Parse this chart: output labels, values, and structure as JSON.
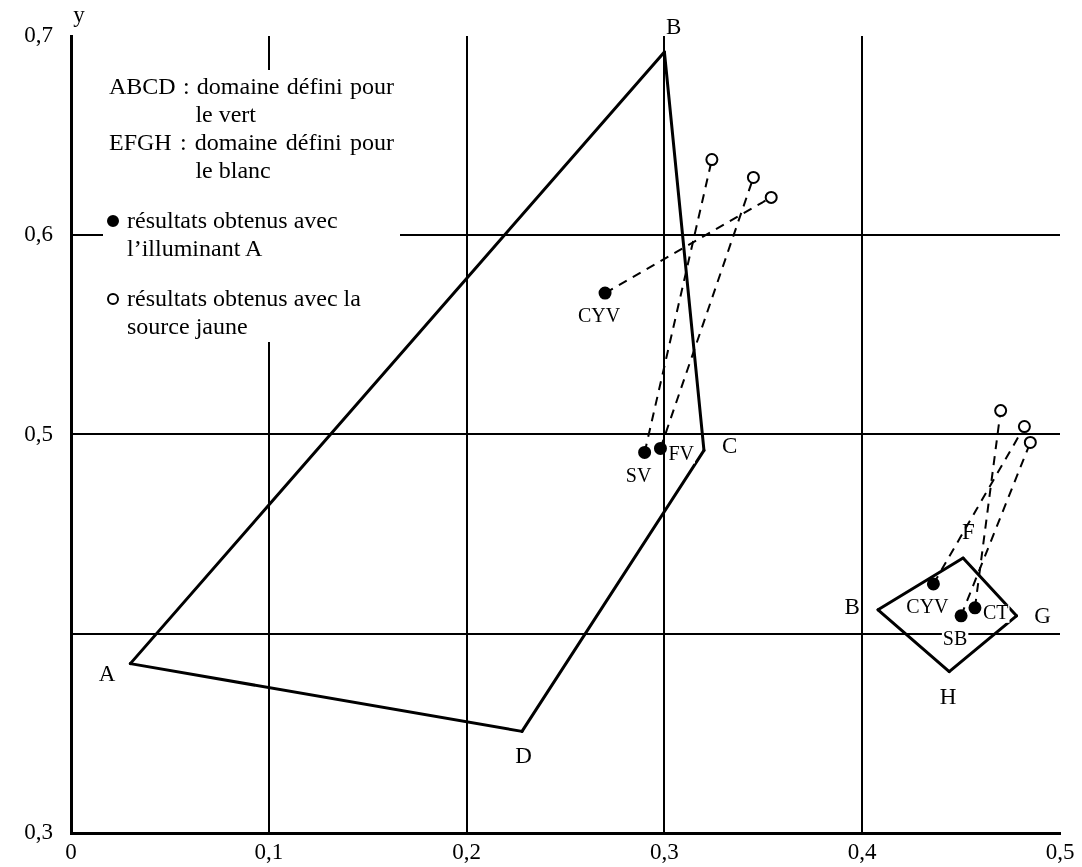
{
  "chart_data": {
    "type": "scatter",
    "ylabel": "y",
    "annotations": [
      "ABCD : domaine défini pour le vert",
      "EFGH : domaine défini pour le blanc"
    ],
    "xlim": [
      0,
      0.5
    ],
    "xticks": [
      0,
      {
        "value": 0.1,
        "label": "0,1"
      },
      {
        "value": 0.2,
        "label": "0,2"
      },
      {
        "value": 0.3,
        "label": "0,3"
      },
      {
        "value": 0.4,
        "label": "0,4"
      },
      {
        "value": 0.5,
        "label": "0,5"
      }
    ],
    "ylim": [
      0.3,
      0.7
    ],
    "yticks": [
      {
        "value": 0.3,
        "label": "0,3"
      },
      {
        "value": 0.4,
        "label": null
      },
      {
        "value": 0.5,
        "label": "0,5"
      },
      {
        "value": 0.6,
        "label": "0,6"
      },
      {
        "value": 0.7,
        "label": "0,7"
      }
    ],
    "grid": true,
    "legend": "top left",
    "series": [
      {
        "type": "scatter",
        "name": "résultats obtenus avec l’illuminant A",
        "color": "#000000",
        "marker": "circle",
        "x": [
          0.27,
          0.29,
          0.298,
          0.436,
          0.457,
          0.45
        ],
        "values": [
          0.571,
          0.491,
          0.493,
          0.425,
          0.413,
          0.409
        ],
        "value_labels": [
          "CYV",
          "SV",
          "FV",
          "CYV",
          "CT",
          "SB"
        ]
      },
      {
        "type": "scatter",
        "name": "résultats obtenus avec la source jaune",
        "color": "#ffffff",
        "marker": "circle",
        "x": [
          0.324,
          0.345,
          0.354,
          0.47,
          0.482,
          0.485
        ],
        "values": [
          0.638,
          0.629,
          0.619,
          0.512,
          0.504,
          0.496
        ]
      },
      {
        "type": "line",
        "color": "#000000",
        "marker": "none",
        "line_style": "dashed",
        "x": [
          0.27,
          0.354
        ],
        "values": [
          0.571,
          0.619
        ]
      },
      {
        "type": "line",
        "color": "#000000",
        "marker": "none",
        "line_style": "dashed",
        "x": [
          0.29,
          0.324
        ],
        "values": [
          0.491,
          0.638
        ]
      },
      {
        "type": "line",
        "color": "#000000",
        "marker": "none",
        "line_style": "dashed",
        "x": [
          0.298,
          0.345
        ],
        "values": [
          0.493,
          0.629
        ]
      },
      {
        "type": "line",
        "color": "#000000",
        "marker": "none",
        "line_style": "dashed",
        "x": [
          0.436,
          0.482
        ],
        "values": [
          0.425,
          0.504
        ]
      },
      {
        "type": "line",
        "color": "#000000",
        "marker": "none",
        "line_style": "dashed",
        "x": [
          0.457,
          0.47
        ],
        "values": [
          0.413,
          0.512
        ]
      },
      {
        "type": "line",
        "color": "#000000",
        "marker": "none",
        "line_style": "dashed",
        "x": [
          0.45,
          0.485
        ],
        "values": [
          0.409,
          0.496
        ]
      },
      {
        "type": "line",
        "color": "#000000",
        "marker": "none",
        "line_style": "solid",
        "x": [
          0.03,
          0.3
        ],
        "values": [
          0.385,
          0.692
        ],
        "value_labels": [
          "A",
          "B"
        ]
      },
      {
        "type": "line",
        "color": "#000000",
        "marker": "none",
        "line_style": "solid",
        "x": [
          0.3,
          0.32
        ],
        "values": [
          0.692,
          0.492
        ]
      },
      {
        "type": "line",
        "color": "#000000",
        "marker": "none",
        "line_style": "solid",
        "x": [
          0.228,
          0.32
        ],
        "values": [
          0.351,
          0.492
        ],
        "value_labels": [
          "D",
          "C"
        ]
      },
      {
        "type": "line",
        "color": "#000000",
        "marker": "none",
        "line_style": "solid",
        "x": [
          0.03,
          0.228
        ],
        "values": [
          0.385,
          0.351
        ]
      },
      {
        "type": "line",
        "color": "#000000",
        "marker": "none",
        "line_style": "solid",
        "x": [
          0.408,
          0.451
        ],
        "values": [
          0.412,
          0.438
        ],
        "value_labels": [
          "B",
          "F"
        ]
      },
      {
        "type": "line",
        "color": "#000000",
        "marker": "none",
        "line_style": "solid",
        "x": [
          0.451,
          0.478
        ],
        "values": [
          0.438,
          0.409
        ]
      },
      {
        "type": "line",
        "color": "#000000",
        "marker": "none",
        "line_style": "solid",
        "x": [
          0.444,
          0.478
        ],
        "values": [
          0.381,
          0.409
        ],
        "value_labels": [
          "H",
          "G"
        ]
      },
      {
        "type": "line",
        "color": "#000000",
        "marker": "none",
        "line_style": "solid",
        "x": [
          0.408,
          0.444
        ],
        "values": [
          0.412,
          0.381
        ]
      }
    ]
  }
}
